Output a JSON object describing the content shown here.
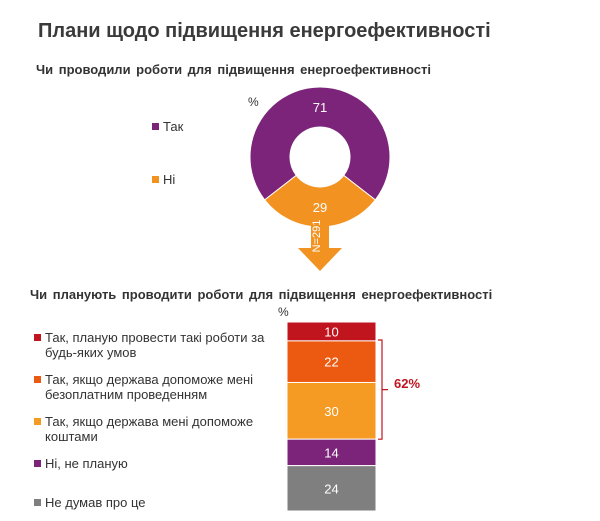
{
  "title": "Плани щодо підвищення енергоефективності",
  "chart_data": [
    {
      "type": "pie",
      "title": "Чи проводили роботи для підвищення енергоефективності",
      "unit": "%",
      "sample_note": "N=291",
      "categories": [
        "Так",
        "Ні"
      ],
      "values": [
        71,
        29
      ],
      "colors": [
        "#7b2479",
        "#f29321"
      ],
      "legend_position": "left"
    },
    {
      "type": "bar",
      "stacked": true,
      "title": "Чи планують проводити роботи для підвищення енергоефективності",
      "unit": "%",
      "categories": [
        "Так, планую провести такі роботи за\nбудь-яких умов",
        "Так, якщо держава допоможе мені\nбезоплатним проведенням",
        "Так, якщо держава мені допоможе\nкоштами",
        "Ні, не планую",
        "Не думав про це"
      ],
      "values": [
        10,
        22,
        30,
        14,
        24
      ],
      "colors": [
        "#c0141f",
        "#ec5a12",
        "#f59a23",
        "#7b2479",
        "#7f7f7f"
      ],
      "bracket_label": "62%",
      "legend_position": "left"
    }
  ],
  "arrow_color": "#f29321"
}
